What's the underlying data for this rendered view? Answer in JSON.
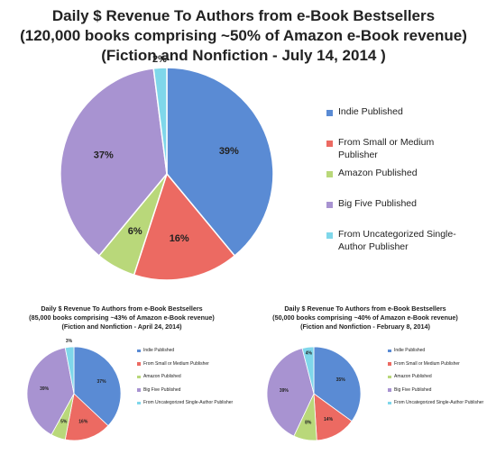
{
  "chart_data": [
    {
      "type": "pie",
      "title": "Daily $ Revenue To Authors from e-Book Bestsellers",
      "subtitle": [
        "(120,000 books comprising ~50% of Amazon e-Book revenue)",
        "(Fiction and Nonfiction - July 14, 2014 )"
      ],
      "slices": [
        {
          "name": "Indie Published",
          "value": 39,
          "label": "39%",
          "color": "#5a8bd4"
        },
        {
          "name": "From Small or Medium Publisher",
          "value": 16,
          "label": "16%",
          "color": "#ec6a62"
        },
        {
          "name": "Amazon Published",
          "value": 6,
          "label": "6%",
          "color": "#b9d87a"
        },
        {
          "name": "Big Five Published",
          "value": 37,
          "label": "37%",
          "color": "#a893d1"
        },
        {
          "name": "From Uncategorized Single-Author Publisher",
          "value": 2,
          "label": "2%",
          "color": "#7fd7ea"
        }
      ],
      "legend_position": "right"
    },
    {
      "type": "pie",
      "title": "Daily $ Revenue To Authors from e-Book Bestsellers",
      "subtitle": [
        "(85,000 books comprising ~43% of Amazon e-Book revenue)",
        "(Fiction and Nonfiction - April 24, 2014)"
      ],
      "slices": [
        {
          "name": "Indie Published",
          "value": 37,
          "label": "37%",
          "color": "#5a8bd4"
        },
        {
          "name": "From Small or Medium Publisher",
          "value": 16,
          "label": "16%",
          "color": "#ec6a62"
        },
        {
          "name": "Amazon Published",
          "value": 5,
          "label": "5%",
          "color": "#b9d87a"
        },
        {
          "name": "Big Five Published",
          "value": 39,
          "label": "39%",
          "color": "#a893d1"
        },
        {
          "name": "From Uncategorized Single-Author Publisher",
          "value": 3,
          "label": "3%",
          "color": "#7fd7ea"
        }
      ],
      "legend_position": "right"
    },
    {
      "type": "pie",
      "title": "Daily $ Revenue To Authors from e-Book Bestsellers",
      "subtitle": [
        "(50,000 books comprising ~40% of Amazon e-Book revenue)",
        "(Fiction and Nonfiction - February 8, 2014)"
      ],
      "slices": [
        {
          "name": "Indie Published",
          "value": 35,
          "label": "35%",
          "color": "#5a8bd4"
        },
        {
          "name": "From Small or Medium Publisher",
          "value": 14,
          "label": "14%",
          "color": "#ec6a62"
        },
        {
          "name": "Amazon Published",
          "value": 8,
          "label": "8%",
          "color": "#b9d87a"
        },
        {
          "name": "Big Five Published",
          "value": 39,
          "label": "39%",
          "color": "#a893d1"
        },
        {
          "name": "From Uncategorized Single-Author Publisher",
          "value": 4,
          "label": "4%",
          "color": "#7fd7ea"
        }
      ],
      "legend_position": "right"
    }
  ]
}
